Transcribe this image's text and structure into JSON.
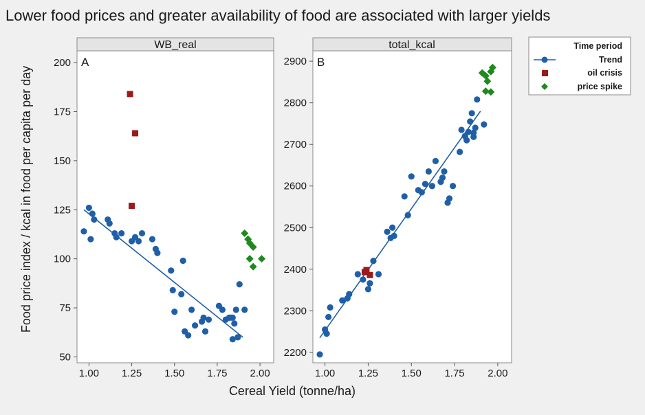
{
  "chart_data": {
    "type": "scatter",
    "title": "Lower food prices and greater availability of food are associated with larger yields",
    "xlabel": "Cereal Yield (tonne/ha)",
    "ylabel": "Food price index / kcal in food per capita per day",
    "legend": {
      "title": "Time period",
      "placement": "right",
      "entries": [
        {
          "label": "Trend",
          "marker": "circle-line",
          "color": "#1f5fa8"
        },
        {
          "label": "oil crisis",
          "marker": "square",
          "color": "#9b1b1b"
        },
        {
          "label": "price spike",
          "marker": "diamond",
          "color": "#1e8a1e"
        }
      ]
    },
    "panels": [
      {
        "name": "WB_real",
        "letter": "A",
        "xlim": [
          0.93,
          2.08
        ],
        "ylim": [
          47,
          206
        ],
        "xticks": [
          1.0,
          1.25,
          1.5,
          1.75,
          2.0
        ],
        "xtick_labels": [
          "1.00",
          "1.25",
          "1.50",
          "1.75",
          "2.00"
        ],
        "yticks": [
          50,
          75,
          100,
          125,
          150,
          175,
          200
        ],
        "ytick_labels": [
          "50",
          "75",
          "100",
          "125",
          "150",
          "175",
          "200"
        ],
        "trend_line": {
          "x": [
            0.97,
            1.9
          ],
          "y": [
            125,
            60
          ]
        },
        "series": [
          {
            "name": "Trend",
            "x": [
              0.97,
              1.0,
              1.01,
              1.02,
              1.03,
              1.11,
              1.12,
              1.15,
              1.16,
              1.19,
              1.25,
              1.27,
              1.29,
              1.31,
              1.37,
              1.39,
              1.4,
              1.48,
              1.49,
              1.5,
              1.54,
              1.55,
              1.56,
              1.58,
              1.6,
              1.62,
              1.66,
              1.67,
              1.68,
              1.7,
              1.76,
              1.78,
              1.8,
              1.82,
              1.83,
              1.84,
              1.84,
              1.85,
              1.86,
              1.87,
              1.88,
              1.91
            ],
            "y": [
              114,
              126,
              110,
              123,
              120,
              120,
              118,
              113,
              111,
              113,
              109,
              111,
              109,
              113,
              110,
              105,
              103,
              94,
              84,
              73,
              82,
              99,
              63,
              61,
              74,
              66,
              68,
              70,
              63,
              69,
              76,
              74,
              69,
              70,
              70,
              70,
              59,
              67,
              74,
              60,
              87,
              74
            ]
          },
          {
            "name": "oil crisis",
            "x": [
              1.24,
              1.27,
              1.25
            ],
            "y": [
              184,
              164,
              127
            ]
          },
          {
            "name": "price spike",
            "x": [
              1.91,
              1.93,
              1.94,
              1.96,
              1.94,
              1.96,
              2.01
            ],
            "y": [
              113,
              110,
              108,
              106,
              100,
              96,
              100
            ]
          }
        ]
      },
      {
        "name": "total_kcal",
        "letter": "B",
        "xlim": [
          0.93,
          2.08
        ],
        "ylim": [
          2175,
          2925
        ],
        "xticks": [
          1.0,
          1.25,
          1.5,
          1.75,
          2.0
        ],
        "xtick_labels": [
          "1.00",
          "1.25",
          "1.50",
          "1.75",
          "2.00"
        ],
        "yticks": [
          2200,
          2300,
          2400,
          2500,
          2600,
          2700,
          2800,
          2900
        ],
        "ytick_labels": [
          "2200",
          "2300",
          "2400",
          "2500",
          "2600",
          "2700",
          "2800",
          "2900"
        ],
        "trend_line": {
          "x": [
            0.97,
            1.9
          ],
          "y": [
            2235,
            2780
          ]
        },
        "series": [
          {
            "name": "Trend",
            "x": [
              0.97,
              1.0,
              1.01,
              1.02,
              1.03,
              1.1,
              1.13,
              1.14,
              1.19,
              1.22,
              1.25,
              1.26,
              1.28,
              1.31,
              1.36,
              1.38,
              1.39,
              1.4,
              1.46,
              1.48,
              1.5,
              1.54,
              1.56,
              1.58,
              1.6,
              1.62,
              1.64,
              1.67,
              1.68,
              1.69,
              1.71,
              1.72,
              1.74,
              1.78,
              1.79,
              1.81,
              1.82,
              1.83,
              1.84,
              1.85,
              1.86,
              1.86,
              1.87,
              1.88,
              1.92
            ],
            "y": [
              2195,
              2255,
              2245,
              2285,
              2308,
              2325,
              2330,
              2340,
              2388,
              2375,
              2352,
              2366,
              2420,
              2388,
              2490,
              2475,
              2500,
              2480,
              2575,
              2530,
              2623,
              2590,
              2585,
              2605,
              2635,
              2600,
              2660,
              2610,
              2620,
              2635,
              2560,
              2570,
              2600,
              2682,
              2735,
              2720,
              2710,
              2730,
              2755,
              2775,
              2728,
              2718,
              2740,
              2808,
              2748
            ]
          },
          {
            "name": "oil crisis",
            "x": [
              1.23,
              1.26,
              1.24
            ],
            "y": [
              2393,
              2386,
              2398
            ]
          },
          {
            "name": "price spike",
            "x": [
              1.91,
              1.93,
              1.94,
              1.96,
              1.93,
              1.96,
              1.97
            ],
            "y": [
              2872,
              2865,
              2852,
              2875,
              2828,
              2826,
              2885
            ]
          }
        ]
      }
    ]
  }
}
